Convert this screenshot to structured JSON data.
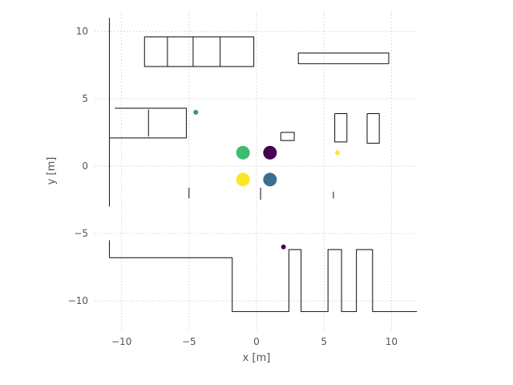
{
  "chart_data": {
    "type": "scatter",
    "title": "",
    "xlabel": "x [m]",
    "ylabel": "y [m]",
    "xlim": [
      -12,
      12
    ],
    "ylim": [
      -12.2,
      11.5
    ],
    "grid": true,
    "xticks": [
      -10,
      -5,
      0,
      5,
      10
    ],
    "yticks": [
      -10,
      -5,
      0,
      5,
      10
    ],
    "xtick_labels": [
      "−10",
      "−5",
      "0",
      "5",
      "10"
    ],
    "ytick_labels": [
      "−10",
      "−5",
      "0",
      "5",
      "10"
    ],
    "colors": {
      "yellow": "#fde725",
      "green": "#3fbc73",
      "teal": "#35938a",
      "blue": "#3b6f8f",
      "purple": "#440154",
      "wall": "#222222",
      "grid": "#c8c8c8"
    },
    "points": [
      {
        "x": -1.0,
        "y": 1.0,
        "size": "large",
        "color": "#3fbc73"
      },
      {
        "x": 1.0,
        "y": 1.0,
        "size": "large",
        "color": "#440154"
      },
      {
        "x": -1.0,
        "y": -1.0,
        "size": "large",
        "color": "#fde725"
      },
      {
        "x": 1.0,
        "y": -1.0,
        "size": "large",
        "color": "#3b6f8f"
      },
      {
        "x": -4.5,
        "y": 4.0,
        "size": "small",
        "color": "#35938a"
      },
      {
        "x": 6.0,
        "y": 1.0,
        "size": "small",
        "color": "#fde725"
      },
      {
        "x": 2.0,
        "y": -6.0,
        "size": "small",
        "color": "#440154"
      }
    ],
    "walls": [
      {
        "name": "left-wall",
        "points": [
          [
            -10.9,
            11
          ],
          [
            -10.9,
            -3
          ]
        ]
      },
      {
        "name": "left-wall-lower",
        "points": [
          [
            -10.9,
            -5.5
          ],
          [
            -10.9,
            -6.8
          ]
        ]
      },
      {
        "name": "lower-corridor",
        "points": [
          [
            -10.9,
            -6.8
          ],
          [
            -1.8,
            -6.8
          ],
          [
            -1.8,
            -10.8
          ],
          [
            2.4,
            -10.8
          ],
          [
            2.4,
            -6.2
          ],
          [
            3.3,
            -6.2
          ],
          [
            3.3,
            -10.8
          ],
          [
            5.3,
            -10.8
          ],
          [
            5.3,
            -6.2
          ],
          [
            6.3,
            -6.2
          ],
          [
            6.3,
            -10.8
          ],
          [
            7.4,
            -10.8
          ],
          [
            7.4,
            -6.2
          ],
          [
            8.6,
            -6.2
          ],
          [
            8.6,
            -10.8
          ],
          [
            11.9,
            -10.8
          ]
        ]
      },
      {
        "name": "left-room",
        "points": [
          [
            -10.5,
            4.3
          ],
          [
            -5.2,
            4.3
          ],
          [
            -5.2,
            2.1
          ],
          [
            -10.9,
            2.1
          ]
        ]
      },
      {
        "name": "left-room-divider",
        "points": [
          [
            -8.0,
            4.2
          ],
          [
            -8.0,
            2.2
          ]
        ]
      },
      {
        "name": "top-row-blocks",
        "points": [
          [
            -8.3,
            9.6
          ],
          [
            -0.2,
            9.6
          ],
          [
            -0.2,
            7.4
          ],
          [
            -8.3,
            7.4
          ],
          [
            -8.3,
            9.6
          ]
        ]
      },
      {
        "name": "top-block-div-1",
        "points": [
          [
            -6.6,
            9.6
          ],
          [
            -6.6,
            7.4
          ]
        ]
      },
      {
        "name": "top-block-div-2",
        "points": [
          [
            -4.7,
            9.6
          ],
          [
            -4.7,
            7.4
          ]
        ]
      },
      {
        "name": "top-block-div-3",
        "points": [
          [
            -2.7,
            9.6
          ],
          [
            -2.7,
            7.4
          ]
        ]
      },
      {
        "name": "top-right-bench",
        "points": [
          [
            3.1,
            8.4
          ],
          [
            9.8,
            8.4
          ],
          [
            9.8,
            7.6
          ],
          [
            3.1,
            7.6
          ],
          [
            3.1,
            8.4
          ]
        ]
      },
      {
        "name": "right-pillar-1",
        "points": [
          [
            5.8,
            3.9
          ],
          [
            6.7,
            3.9
          ],
          [
            6.7,
            1.8
          ],
          [
            5.8,
            1.8
          ],
          [
            5.8,
            3.9
          ]
        ]
      },
      {
        "name": "right-pillar-2",
        "points": [
          [
            8.2,
            3.9
          ],
          [
            9.1,
            3.9
          ],
          [
            9.1,
            1.7
          ],
          [
            8.2,
            1.7
          ],
          [
            8.2,
            3.9
          ]
        ]
      },
      {
        "name": "small-box",
        "points": [
          [
            1.8,
            2.5
          ],
          [
            2.8,
            2.5
          ],
          [
            2.8,
            1.9
          ],
          [
            1.8,
            1.9
          ],
          [
            1.8,
            2.5
          ]
        ]
      },
      {
        "name": "post-left",
        "points": [
          [
            -5.0,
            -1.6
          ],
          [
            -5.0,
            -2.4
          ]
        ]
      },
      {
        "name": "post-center",
        "points": [
          [
            0.3,
            -1.6
          ],
          [
            0.3,
            -2.5
          ]
        ]
      },
      {
        "name": "post-right",
        "points": [
          [
            5.7,
            -1.9
          ],
          [
            5.7,
            -2.4
          ]
        ]
      }
    ]
  }
}
